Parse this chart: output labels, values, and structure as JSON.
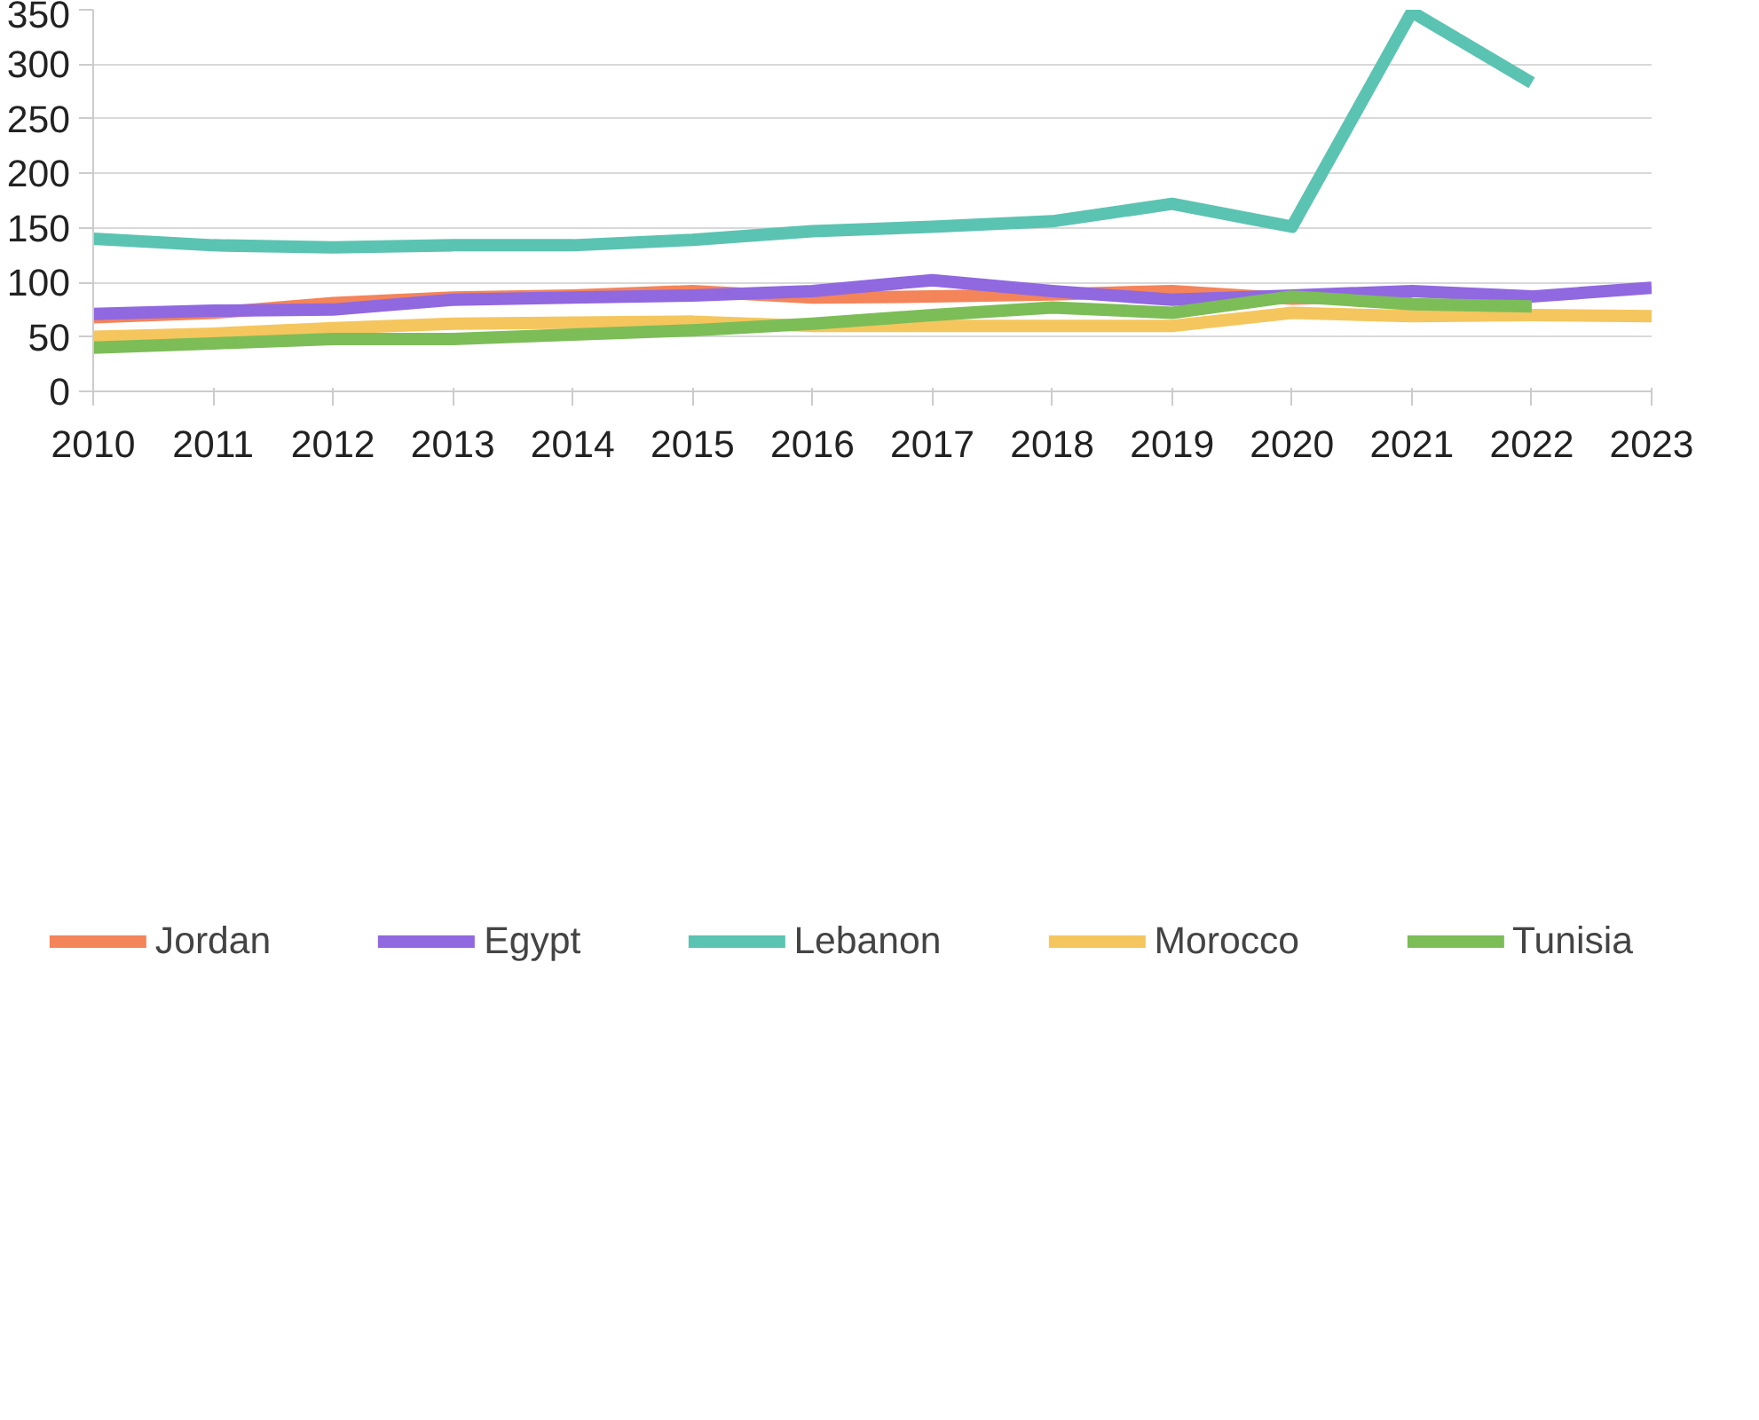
{
  "chart_data": {
    "type": "line",
    "x": [
      2010,
      2011,
      2012,
      2013,
      2014,
      2015,
      2016,
      2017,
      2018,
      2019,
      2020,
      2021,
      2022,
      2023
    ],
    "xlim": [
      2010,
      2023
    ],
    "xticks": [
      2010,
      2011,
      2012,
      2013,
      2014,
      2015,
      2016,
      2017,
      2018,
      2019,
      2020,
      2021,
      2022,
      2023
    ],
    "ylim": [
      0,
      350
    ],
    "yticks": [
      0,
      50,
      100,
      150,
      200,
      250,
      300,
      350
    ],
    "grid": "y",
    "legend": "bottom",
    "marker": "none",
    "line_style": "solid",
    "series": [
      {
        "name": "Jordan",
        "color": "#f4845a",
        "values": [
          68,
          72,
          81,
          86,
          88,
          92,
          86,
          87,
          89,
          92,
          85,
          88,
          null,
          null
        ]
      },
      {
        "name": "Egypt",
        "color": "#9068e0",
        "values": [
          71,
          74,
          75,
          84,
          86,
          88,
          92,
          102,
          92,
          84,
          88,
          92,
          87,
          95
        ]
      },
      {
        "name": "Lebanon",
        "color": "#5bc3b2",
        "values": [
          140,
          134,
          132,
          134,
          134,
          139,
          147,
          151,
          156,
          172,
          151,
          348,
          283,
          null
        ]
      },
      {
        "name": "Morocco",
        "color": "#f5c65e",
        "values": [
          50,
          53,
          58,
          62,
          63,
          64,
          60,
          60,
          60,
          60,
          72,
          69,
          70,
          69
        ]
      },
      {
        "name": "Tunisia",
        "color": "#7cbd57",
        "values": [
          40,
          44,
          48,
          48,
          52,
          56,
          62,
          70,
          77,
          72,
          87,
          80,
          78,
          null
        ]
      }
    ]
  }
}
